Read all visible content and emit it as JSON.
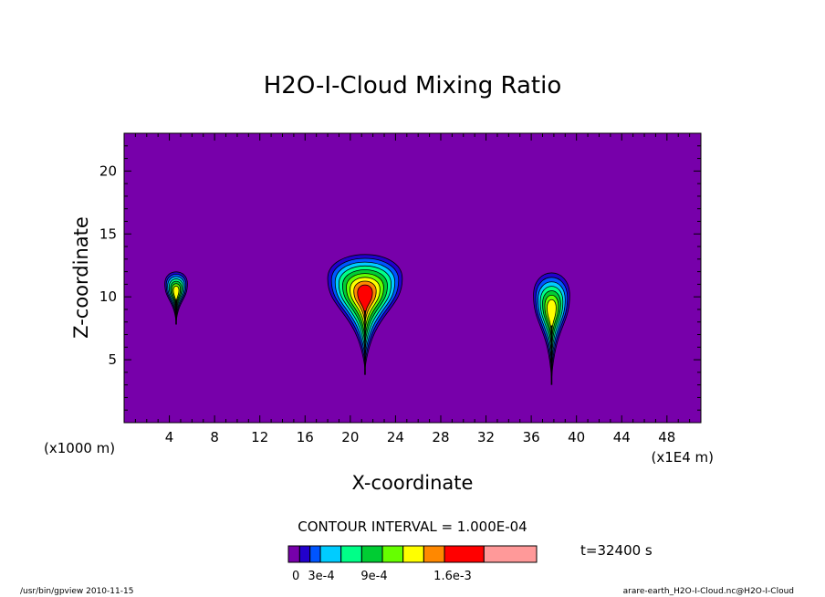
{
  "chart_data": {
    "type": "heatmap",
    "title": "H2O-I-Cloud Mixing Ratio",
    "xlabel": "X-coordinate",
    "ylabel": "Z-coordinate",
    "x_unit_left": "(x1000 m)",
    "x_unit_right": "(x1E4 m)",
    "xlim": [
      0,
      51
    ],
    "ylim": [
      0,
      23
    ],
    "xticks": [
      4,
      8,
      12,
      16,
      20,
      24,
      28,
      32,
      36,
      40,
      44,
      48
    ],
    "yticks": [
      5,
      10,
      15,
      20
    ],
    "contour_interval_label": "CONTOUR INTERVAL = 1.000E-04",
    "time_label": "t=32400 s",
    "background_color": "#7700aa",
    "clouds": [
      {
        "center_x": 4.6,
        "base_z": 7.8,
        "top_z": 12.3,
        "half_width": 1.0,
        "peak": 0.0009
      },
      {
        "center_x": 21.3,
        "base_z": 3.8,
        "top_z": 14.0,
        "half_width": 3.3,
        "peak": 0.0011
      },
      {
        "center_x": 37.8,
        "base_z": 3.0,
        "top_z": 12.5,
        "half_width": 1.6,
        "peak": 0.0009
      }
    ],
    "legend": {
      "labels": [
        "0",
        "3e-4",
        "9e-4",
        "1.6e-3"
      ],
      "colors": [
        "#7700aa",
        "#2200cc",
        "#0055ff",
        "#00ccff",
        "#00ff88",
        "#00cc33",
        "#66ff00",
        "#ffff00",
        "#ff8800",
        "#ff0000",
        "#ff9999"
      ]
    }
  },
  "footer": {
    "left": "/usr/bin/gpview   2010-11-15",
    "right": "arare-earth_H2O-I-Cloud.nc@H2O-I-Cloud"
  }
}
